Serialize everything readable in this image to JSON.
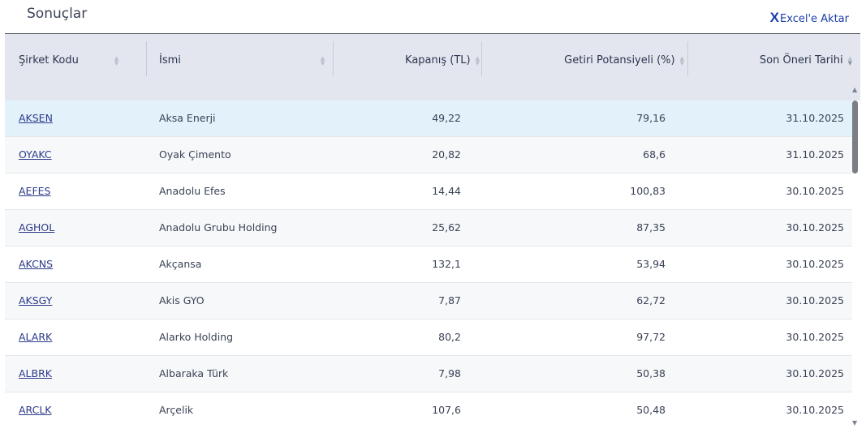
{
  "header": {
    "title": "Sonuçlar",
    "export_x": "X",
    "export_label": "Excel'e Aktar"
  },
  "columns": [
    {
      "label": "Şirket Kodu"
    },
    {
      "label": "İsmi"
    },
    {
      "label": "Kapanış (TL)"
    },
    {
      "label": "Getiri Potansiyeli (%)"
    },
    {
      "label": "Son Öneri Tarihi"
    }
  ],
  "rows": [
    {
      "code": "AKSEN",
      "name": "Aksa Enerji",
      "close": "49,22",
      "potential": "79,16",
      "date": "31.10.2025"
    },
    {
      "code": "OYAKC",
      "name": "Oyak Çimento",
      "close": "20,82",
      "potential": "68,6",
      "date": "31.10.2025"
    },
    {
      "code": "AEFES",
      "name": "Anadolu Efes",
      "close": "14,44",
      "potential": "100,83",
      "date": "30.10.2025"
    },
    {
      "code": "AGHOL",
      "name": "Anadolu Grubu Holding",
      "close": "25,62",
      "potential": "87,35",
      "date": "30.10.2025"
    },
    {
      "code": "AKCNS",
      "name": "Akçansa",
      "close": "132,1",
      "potential": "53,94",
      "date": "30.10.2025"
    },
    {
      "code": "AKSGY",
      "name": "Akis GYO",
      "close": "7,87",
      "potential": "62,72",
      "date": "30.10.2025"
    },
    {
      "code": "ALARK",
      "name": "Alarko Holding",
      "close": "80,2",
      "potential": "97,72",
      "date": "30.10.2025"
    },
    {
      "code": "ALBRK",
      "name": "Albaraka Türk",
      "close": "7,98",
      "potential": "50,38",
      "date": "30.10.2025"
    },
    {
      "code": "ARCLK",
      "name": "Arçelik",
      "close": "107,6",
      "potential": "50,48",
      "date": "30.10.2025"
    }
  ],
  "icons": {
    "sort": "sort-icon",
    "export": "excel-x-icon"
  }
}
